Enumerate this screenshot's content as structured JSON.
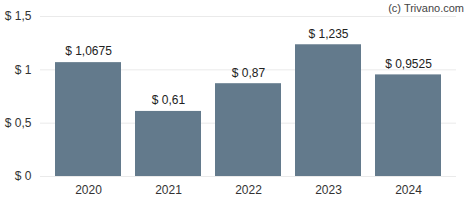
{
  "chart_data": {
    "type": "bar",
    "caption": "(c) Trivano.com",
    "categories": [
      "2020",
      "2021",
      "2022",
      "2023",
      "2024"
    ],
    "values": [
      1.0675,
      0.61,
      0.87,
      1.235,
      0.9525
    ],
    "value_labels": [
      "$ 1,0675",
      "$ 0,61",
      "$ 0,87",
      "$ 1,235",
      "$ 0,9525"
    ],
    "color": "#637a8c",
    "ylim": [
      0,
      1.5
    ],
    "yticks": [
      {
        "value": 0,
        "label": "$ 0"
      },
      {
        "value": 0.5,
        "label": "$ 0,5"
      },
      {
        "value": 1,
        "label": "$ 1"
      },
      {
        "value": 1.5,
        "label": "$ 1,5"
      }
    ],
    "grid": true,
    "data_labels": true
  }
}
